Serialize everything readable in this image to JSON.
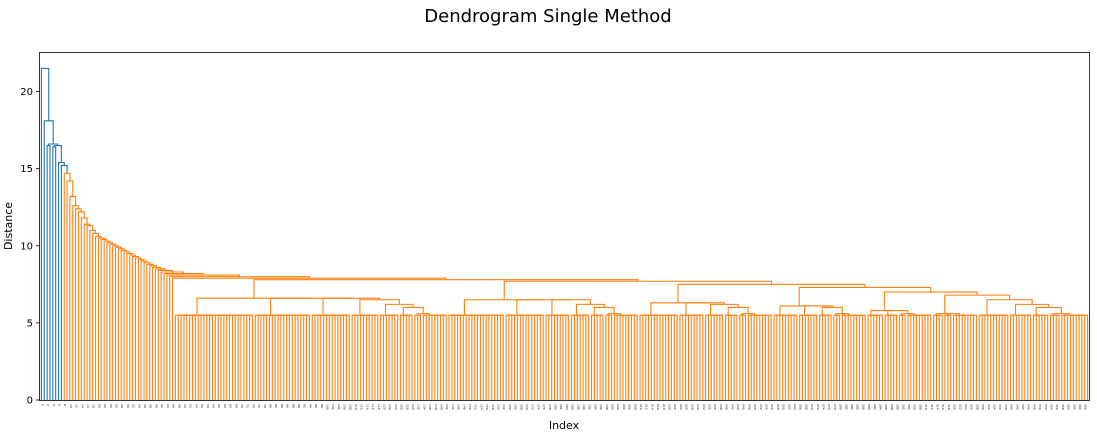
{
  "chart_data": {
    "type": "dendrogram",
    "title": "Dendrogram Single Method",
    "xlabel": "Index",
    "ylabel": "Distance",
    "ylim": [
      0,
      22.5
    ],
    "yticks": [
      0,
      5,
      10,
      15,
      20
    ],
    "grid": false,
    "leaf_count": 368,
    "colors": {
      "upper_links": "#1f77b4",
      "cluster": "#ff7f0e"
    },
    "upper_merge_heights": [
      21.5,
      18.1,
      16.6,
      16.5,
      15.4,
      15.2
    ],
    "cluster_merge_heights_descending": [
      14.7,
      14.2,
      13.2,
      12.6,
      12.4,
      12.2,
      11.8,
      11.4,
      11.3,
      11.0,
      10.8,
      10.6,
      10.5,
      10.4,
      10.3,
      10.2,
      10.1,
      10.0,
      9.9,
      9.8,
      9.7,
      9.6,
      9.5,
      9.4,
      9.3,
      9.2,
      9.1,
      9.0,
      8.9,
      8.8,
      8.7,
      8.6,
      8.5,
      8.4,
      8.3,
      8.2,
      8.1,
      8.0,
      7.9,
      7.8,
      7.7,
      7.5,
      7.3,
      7.0,
      6.8,
      6.5,
      6.2,
      6.0,
      5.6
    ]
  }
}
